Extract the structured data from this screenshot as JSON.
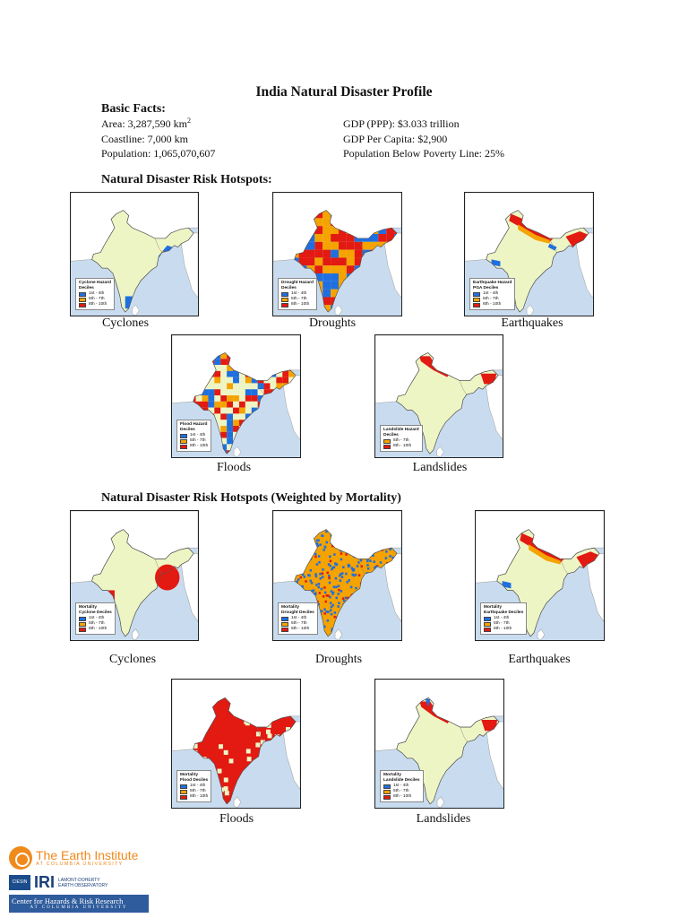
{
  "title": "India Natural Disaster Profile",
  "basic_facts": {
    "heading": "Basic Facts:",
    "area_label": "Area: 3,287,590 km",
    "area_sup": "2",
    "coastline": "Coastline: 7,000 km",
    "population": "Population: 1,065,070,607",
    "gdp_ppp": "GDP (PPP): $3.033 trillion",
    "gdp_per_capita": "GDP Per Capita: $2,900",
    "poverty": "Population Below Poverty Line: 25%"
  },
  "section1": {
    "heading": "Natural Disaster Risk Hotspots:",
    "maps": [
      {
        "caption": "Cyclones",
        "legend_title": "Cyclone Hazard",
        "legend_subtitle": "Deciles"
      },
      {
        "caption": "Droughts",
        "legend_title": "Drought Hazard",
        "legend_subtitle": "Deciles"
      },
      {
        "caption": "Earthquakes",
        "legend_title": "Earthquake Hazard",
        "legend_subtitle": "PGA Deciles"
      },
      {
        "caption": "Floods",
        "legend_title": "Flood Hazard",
        "legend_subtitle": "Deciles"
      },
      {
        "caption": "Landslides",
        "legend_title": "Landslide Hazard",
        "legend_subtitle": "Deciles"
      }
    ]
  },
  "section2": {
    "heading": "Natural Disaster Risk Hotspots (Weighted by Mortality)",
    "maps": [
      {
        "caption": "Cyclones",
        "legend_title": "Mortality",
        "legend_subtitle": "Cyclone Deciles"
      },
      {
        "caption": "Droughts",
        "legend_title": "Mortality",
        "legend_subtitle": "Drought Deciles"
      },
      {
        "caption": "Earthquakes",
        "legend_title": "Mortality",
        "legend_subtitle": "Earthquake Deciles"
      },
      {
        "caption": "Floods",
        "legend_title": "Mortality",
        "legend_subtitle": "Flood Deciles"
      },
      {
        "caption": "Landslides",
        "legend_title": "Mortality",
        "legend_subtitle": "Landslide Deciles"
      }
    ]
  },
  "legend_classes": [
    "1st - 4th",
    "5th - 7th",
    "8th - 10th"
  ],
  "legend_classes_two": [
    "5th - 7th",
    "8th - 10th"
  ],
  "colors": {
    "land": "#eef5c4",
    "neighbour": "#ffffff",
    "water": "#c9dcef",
    "low": "#1f6fe0",
    "medium": "#f5a300",
    "high": "#e21a12"
  },
  "footer": {
    "earth_institute": "The Earth Institute",
    "earth_institute_sub": "AT COLUMBIA UNIVERSITY",
    "ciesin": "CIESIN",
    "iri": "IRI",
    "ldeo_line1": "LAMONT-DOHERTY",
    "ldeo_line2": "EARTH OBSERVATORY",
    "chrr": "Center for Hazards & Risk Research",
    "chrr_sub": "AT COLUMBIA UNIVERSITY"
  }
}
